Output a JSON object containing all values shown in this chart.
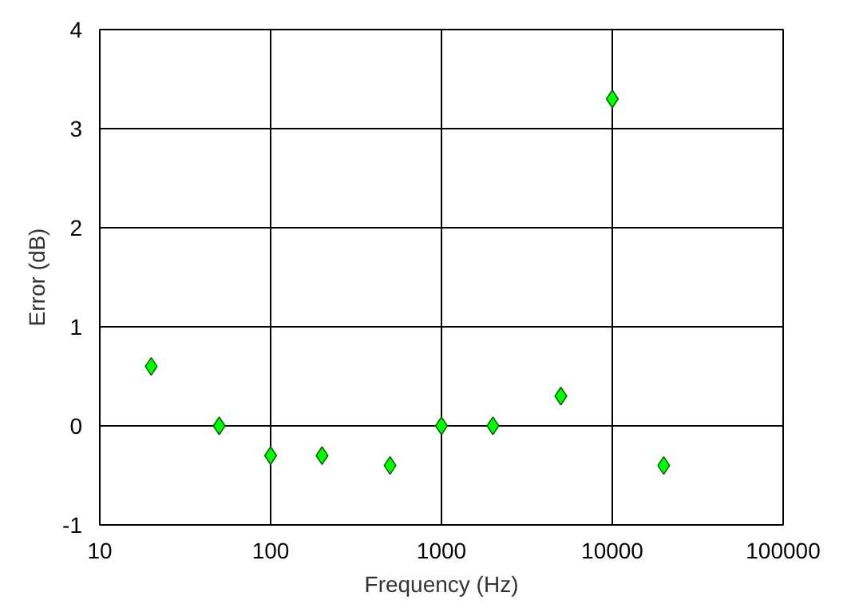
{
  "chart_data": {
    "type": "scatter",
    "xlabel": "Frequency (Hz)",
    "ylabel": "Error (dB)",
    "x": [
      20,
      50,
      100,
      200,
      500,
      1000,
      2000,
      5000,
      10000,
      20000
    ],
    "values": [
      0.6,
      0,
      -0.3,
      -0.3,
      -0.4,
      0,
      0,
      0.3,
      3.3,
      -0.4
    ],
    "color": "#00ff00",
    "marker": "diamond",
    "log": "x",
    "grid": true,
    "xlim": [
      10,
      100000
    ],
    "xticks": [
      10,
      100,
      1000,
      10000,
      100000
    ],
    "ylim": [
      -1,
      4
    ],
    "yticks": [
      -1,
      0,
      1,
      2,
      3,
      4
    ]
  }
}
